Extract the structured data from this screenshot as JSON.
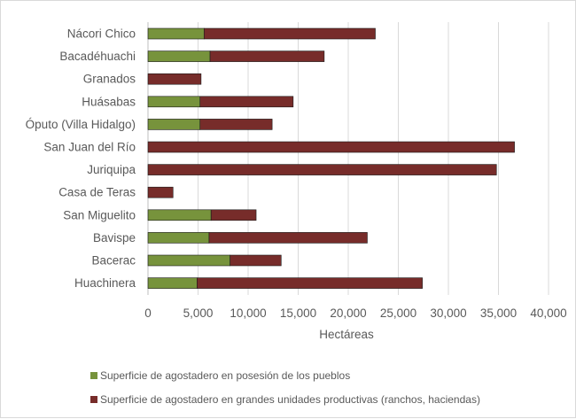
{
  "chart_data": {
    "type": "bar",
    "orientation": "horizontal",
    "stacked": true,
    "categories": [
      "Nácori Chico",
      "Bacadéhuachi",
      "Granados",
      "Huásabas",
      "Óputo (Villa Hidalgo)",
      "San Juan del Río",
      "Juriquipa",
      "Casa de Teras",
      "San Miguelito",
      "Bavispe",
      "Bacerac",
      "Huachinera"
    ],
    "series": [
      {
        "name": "Superficie de agostadero en posesión de los pueblos",
        "color": "#77933c",
        "values": [
          5600,
          6200,
          0,
          5200,
          5200,
          0,
          0,
          0,
          6300,
          6100,
          8200,
          4900
        ]
      },
      {
        "name": "Superficie de agostadero en grandes unidades productivas (ranchos, haciendas)",
        "color": "#772c2a",
        "values": [
          17100,
          11400,
          5300,
          9300,
          7200,
          36600,
          34800,
          2500,
          4500,
          15800,
          5100,
          22500
        ]
      }
    ],
    "xlabel": "Hectáreas",
    "ylabel": "",
    "xlim": [
      0,
      40000
    ],
    "xticks": [
      0,
      5000,
      10000,
      15000,
      20000,
      25000,
      30000,
      35000,
      40000
    ],
    "xtick_labels": [
      "0",
      "5,000",
      "10,000",
      "15,000",
      "20,000",
      "25,000",
      "30,000",
      "35,000",
      "40,000"
    ],
    "grid": "vertical",
    "legend_position": "bottom-left"
  }
}
